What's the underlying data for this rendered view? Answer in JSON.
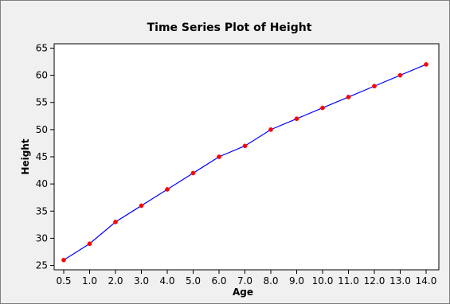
{
  "chart_data": {
    "type": "line",
    "title": "Time Series Plot of Height",
    "xlabel": "Age",
    "ylabel": "Height",
    "categories": [
      "0.5",
      "1.0",
      "2.0",
      "3.0",
      "4.0",
      "5.0",
      "6.0",
      "7.0",
      "8.0",
      "9.0",
      "10.0",
      "11.0",
      "12.0",
      "13.0",
      "14.0"
    ],
    "series": [
      {
        "values": [
          26,
          29,
          33,
          36,
          39,
          42,
          45,
          47,
          50,
          52,
          54,
          56,
          58,
          60,
          62
        ]
      }
    ],
    "ylim": [
      24.2,
      65.8
    ],
    "yticks": [
      25,
      30,
      35,
      40,
      45,
      50,
      55,
      60,
      65
    ],
    "grid": false,
    "line_color": "#0000ff",
    "marker_color": "#ff0000",
    "background_color": "#ffffff",
    "figure_background_color": "#f0f0f0"
  }
}
